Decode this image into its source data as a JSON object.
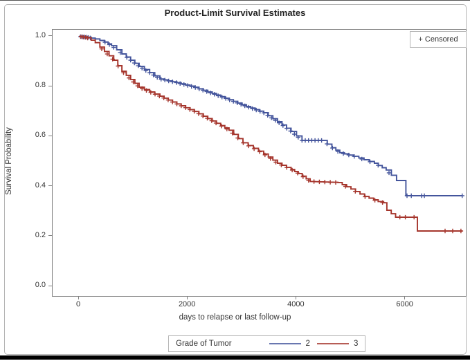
{
  "title": "Product-Limit Survival Estimates",
  "censored_legend": "+ Censored",
  "legend": {
    "title": "Grade of Tumor",
    "items": [
      {
        "label": "2",
        "color": "#44559C"
      },
      {
        "label": "3",
        "color": "#A5352C"
      }
    ]
  },
  "chart_data": {
    "type": "line",
    "subtype": "kaplan-meier-step",
    "title": "Product-Limit Survival Estimates",
    "xlabel": "days to relapse or last follow-up",
    "ylabel": "Survival Probability",
    "xlim": [
      -480,
      7110
    ],
    "ylim": [
      -0.03,
      1.03
    ],
    "x_ticks": [
      {
        "label": "0",
        "value": 0
      },
      {
        "label": "2000",
        "value": 2000
      },
      {
        "label": "4000",
        "value": 4000
      },
      {
        "label": "6000",
        "value": 6000
      }
    ],
    "y_ticks": [
      {
        "label": "1.0",
        "value": 1.0
      },
      {
        "label": "0.8",
        "value": 0.8
      },
      {
        "label": "0.6",
        "value": 0.6
      },
      {
        "label": "0.4",
        "value": 0.4
      },
      {
        "label": "0.2",
        "value": 0.2
      },
      {
        "label": "0.0",
        "value": 0.0
      }
    ],
    "grid": false,
    "legend_position": "bottom",
    "series": [
      {
        "name": "2",
        "group": "Grade of Tumor",
        "color": "#44559C",
        "knots": [
          [
            0,
            1.0
          ],
          [
            150,
            0.997
          ],
          [
            300,
            0.99
          ],
          [
            470,
            0.978
          ],
          [
            600,
            0.963
          ],
          [
            790,
            0.93
          ],
          [
            950,
            0.905
          ],
          [
            1107,
            0.88
          ],
          [
            1300,
            0.855
          ],
          [
            1488,
            0.83
          ],
          [
            1800,
            0.815
          ],
          [
            2124,
            0.797
          ],
          [
            2450,
            0.772
          ],
          [
            2760,
            0.747
          ],
          [
            3080,
            0.72
          ],
          [
            3396,
            0.695
          ],
          [
            3650,
            0.659
          ],
          [
            3900,
            0.62
          ],
          [
            4100,
            0.584
          ],
          [
            4480,
            0.584
          ],
          [
            4650,
            0.555
          ],
          [
            4795,
            0.535
          ],
          [
            5050,
            0.521
          ],
          [
            5431,
            0.493
          ],
          [
            5648,
            0.466
          ],
          [
            5839,
            0.424
          ],
          [
            5995,
            0.424
          ],
          [
            6010,
            0.363
          ],
          [
            7046,
            0.363
          ]
        ],
        "censor_days": [
          30,
          65,
          100,
          135,
          170,
          210,
          480,
          560,
          640,
          760,
          880,
          950,
          1020,
          1090,
          1160,
          1230,
          1300,
          1370,
          1440,
          1510,
          1580,
          1650,
          1720,
          1790,
          1860,
          1930,
          2000,
          2070,
          2140,
          2210,
          2280,
          2350,
          2420,
          2490,
          2560,
          2630,
          2700,
          2770,
          2840,
          2910,
          2980,
          3050,
          3120,
          3190,
          3260,
          3330,
          3400,
          3470,
          3540,
          3610,
          3680,
          3750,
          3820,
          3890,
          3960,
          4030,
          4100,
          4160,
          4220,
          4280,
          4340,
          4400,
          4460,
          4560,
          4660,
          4760,
          4860,
          4960,
          5060,
          5200,
          5350,
          5500,
          5700,
          6030,
          6110,
          6300,
          6350,
          7045
        ]
      },
      {
        "name": "3",
        "group": "Grade of Tumor",
        "color": "#A5352C",
        "knots": [
          [
            0,
            1.0
          ],
          [
            150,
            0.995
          ],
          [
            300,
            0.975
          ],
          [
            470,
            0.94
          ],
          [
            640,
            0.905
          ],
          [
            790,
            0.861
          ],
          [
            950,
            0.828
          ],
          [
            1107,
            0.797
          ],
          [
            1300,
            0.778
          ],
          [
            1488,
            0.761
          ],
          [
            1800,
            0.73
          ],
          [
            2124,
            0.7
          ],
          [
            2450,
            0.662
          ],
          [
            2760,
            0.625
          ],
          [
            3015,
            0.575
          ],
          [
            3396,
            0.53
          ],
          [
            3650,
            0.493
          ],
          [
            3900,
            0.468
          ],
          [
            4032,
            0.452
          ],
          [
            4250,
            0.42
          ],
          [
            4760,
            0.416
          ],
          [
            5000,
            0.39
          ],
          [
            5250,
            0.36
          ],
          [
            5500,
            0.34
          ],
          [
            5600,
            0.335
          ],
          [
            5660,
            0.305
          ],
          [
            5820,
            0.277
          ],
          [
            6180,
            0.277
          ],
          [
            6221,
            0.222
          ],
          [
            7046,
            0.222
          ]
        ],
        "censor_days": [
          40,
          80,
          120,
          160,
          420,
          520,
          620,
          720,
          820,
          920,
          1000,
          1080,
          1160,
          1240,
          1320,
          1400,
          1480,
          1560,
          1640,
          1720,
          1800,
          1880,
          1960,
          2040,
          2120,
          2200,
          2280,
          2360,
          2440,
          2520,
          2620,
          2720,
          2820,
          2920,
          3020,
          3120,
          3220,
          3320,
          3420,
          3520,
          3620,
          3720,
          3820,
          3920,
          4020,
          4120,
          4220,
          4320,
          4420,
          4520,
          4620,
          4720,
          4900,
          5080,
          5260,
          5440,
          5580,
          5900,
          6000,
          6160,
          6730,
          6870,
          7022
        ]
      }
    ]
  }
}
